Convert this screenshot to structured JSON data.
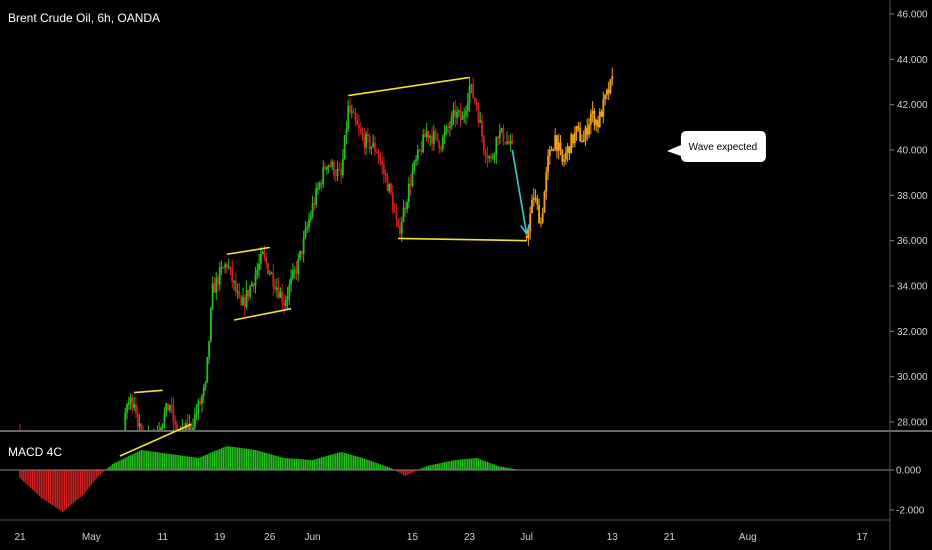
{
  "header": {
    "title": "Brent Crude Oil, 6h, OANDA"
  },
  "macd_label": "MACD 4C",
  "colors": {
    "background": "#000000",
    "up": "#22c31c",
    "down": "#d41f1f",
    "projection": "#f5a21b",
    "trendline": "#f0e23a",
    "arrow": "#3fc8d6",
    "separator": "#cfcfcf"
  },
  "chart_data": {
    "type": "candlestick",
    "price_axis": {
      "ticks": [
        "46.000",
        "44.000",
        "42.000",
        "40.000",
        "38.000",
        "36.000",
        "34.000",
        "32.000",
        "30.000",
        "28.000"
      ],
      "ylim": [
        26.6,
        46.3
      ]
    },
    "macd_axis": {
      "ticks": [
        "0.000",
        "-2.000"
      ],
      "ylim": [
        -2.3,
        1.7
      ]
    },
    "time_axis": {
      "labels": [
        "21",
        "May",
        "11",
        "19",
        "26",
        "Jun",
        "15",
        "23",
        "Jul",
        "13",
        "21",
        "Aug",
        "17"
      ],
      "dates": [
        "2020-04-21",
        "2020-05-01",
        "2020-05-11",
        "2020-05-19",
        "2020-05-26",
        "2020-06-01",
        "2020-06-15",
        "2020-06-23",
        "2020-07-01",
        "2020-07-13",
        "2020-07-21",
        "2020-08-01",
        "2020-08-17"
      ]
    },
    "price_path": [
      [
        "2020-04-21",
        27.5
      ],
      [
        "2020-04-23",
        26.2
      ],
      [
        "2020-05-05",
        26.0
      ],
      [
        "2020-05-06",
        28.8
      ],
      [
        "2020-05-07",
        29.0
      ],
      [
        "2020-05-08",
        27.2
      ],
      [
        "2020-05-10",
        27.5
      ],
      [
        "2020-05-12",
        28.8
      ],
      [
        "2020-05-13",
        27.3
      ],
      [
        "2020-05-15",
        27.8
      ],
      [
        "2020-05-17",
        29.5
      ],
      [
        "2020-05-18",
        33.8
      ],
      [
        "2020-05-19",
        34.5
      ],
      [
        "2020-05-20",
        35.0
      ],
      [
        "2020-05-22",
        33.0
      ],
      [
        "2020-05-24",
        34.5
      ],
      [
        "2020-05-25",
        35.3
      ],
      [
        "2020-05-27",
        34.0
      ],
      [
        "2020-05-28",
        33.3
      ],
      [
        "2020-05-30",
        35.0
      ],
      [
        "2020-06-01",
        37.5
      ],
      [
        "2020-06-03",
        39.5
      ],
      [
        "2020-06-05",
        38.8
      ],
      [
        "2020-06-06",
        41.8
      ],
      [
        "2020-06-08",
        40.5
      ],
      [
        "2020-06-10",
        40.0
      ],
      [
        "2020-06-12",
        38.0
      ],
      [
        "2020-06-13",
        36.3
      ],
      [
        "2020-06-15",
        39.0
      ],
      [
        "2020-06-17",
        40.8
      ],
      [
        "2020-06-19",
        40.3
      ],
      [
        "2020-06-21",
        41.6
      ],
      [
        "2020-06-22",
        41.3
      ],
      [
        "2020-06-23",
        42.8
      ],
      [
        "2020-06-24",
        42.0
      ],
      [
        "2020-06-25",
        40.2
      ],
      [
        "2020-06-26",
        39.5
      ],
      [
        "2020-06-27",
        40.8
      ],
      [
        "2020-06-28",
        40.5
      ],
      [
        "2020-06-29",
        40.0
      ]
    ],
    "projection_path": [
      [
        "2020-07-01",
        36.2
      ],
      [
        "2020-07-02",
        38.0
      ],
      [
        "2020-07-03",
        36.8
      ],
      [
        "2020-07-04",
        39.5
      ],
      [
        "2020-07-05",
        40.6
      ],
      [
        "2020-07-06",
        39.4
      ],
      [
        "2020-07-07",
        40.2
      ],
      [
        "2020-07-08",
        40.8
      ],
      [
        "2020-07-09",
        40.4
      ],
      [
        "2020-07-10",
        41.6
      ],
      [
        "2020-07-11",
        41.2
      ],
      [
        "2020-07-12",
        42.2
      ],
      [
        "2020-07-13",
        43.0
      ]
    ],
    "macd_path": [
      [
        "2020-04-21",
        -0.4
      ],
      [
        "2020-04-24",
        -1.4
      ],
      [
        "2020-04-27",
        -2.1
      ],
      [
        "2020-04-30",
        -1.2
      ],
      [
        "2020-05-02",
        -0.3
      ],
      [
        "2020-05-04",
        0.3
      ],
      [
        "2020-05-08",
        1.0
      ],
      [
        "2020-05-12",
        0.8
      ],
      [
        "2020-05-16",
        0.6
      ],
      [
        "2020-05-20",
        1.2
      ],
      [
        "2020-05-24",
        1.0
      ],
      [
        "2020-05-28",
        0.6
      ],
      [
        "2020-06-01",
        0.5
      ],
      [
        "2020-06-05",
        0.9
      ],
      [
        "2020-06-08",
        0.6
      ],
      [
        "2020-06-12",
        0.1
      ],
      [
        "2020-06-14",
        -0.3
      ],
      [
        "2020-06-17",
        0.2
      ],
      [
        "2020-06-21",
        0.5
      ],
      [
        "2020-06-24",
        0.6
      ],
      [
        "2020-06-27",
        0.2
      ],
      [
        "2020-06-30",
        0.0
      ]
    ],
    "trendlines": [
      {
        "from": [
          "2020-05-07",
          29.3
        ],
        "to": [
          "2020-05-11",
          29.4
        ]
      },
      {
        "from": [
          "2020-05-05",
          26.5
        ],
        "to": [
          "2020-05-15",
          27.9
        ]
      },
      {
        "from": [
          "2020-05-20",
          35.4
        ],
        "to": [
          "2020-05-26",
          35.7
        ]
      },
      {
        "from": [
          "2020-05-21",
          32.5
        ],
        "to": [
          "2020-05-29",
          33.0
        ]
      },
      {
        "from": [
          "2020-06-06",
          42.4
        ],
        "to": [
          "2020-06-23",
          43.2
        ]
      },
      {
        "from": [
          "2020-06-13",
          36.1
        ],
        "to": [
          "2020-07-01",
          36.0
        ]
      }
    ],
    "arrow": {
      "from": [
        "2020-06-29",
        40.0
      ],
      "to": [
        "2020-07-01",
        36.3
      ]
    },
    "annotations": [
      {
        "text": "Wave expected",
        "at": [
          "2020-07-18",
          40.0
        ]
      }
    ]
  }
}
